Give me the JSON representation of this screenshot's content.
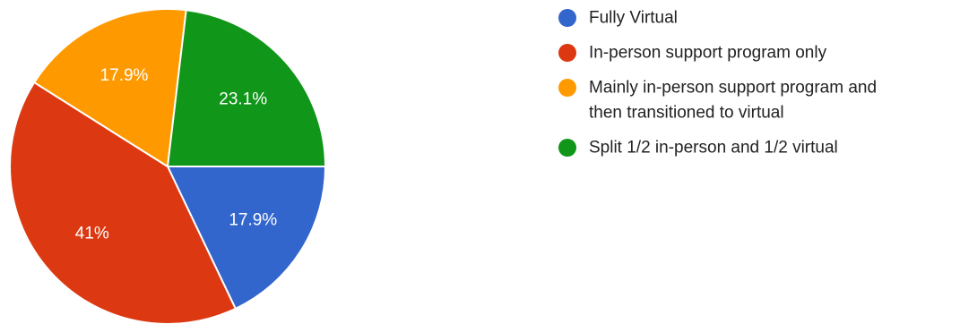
{
  "chart_data": {
    "type": "pie",
    "title": "",
    "legend_position": "right",
    "slices": [
      {
        "name": "Fully Virtual",
        "value": 17.9,
        "label": "17.9%",
        "color": "#3366cc"
      },
      {
        "name": "In-person support program only",
        "value": 41.0,
        "label": "41%",
        "color": "#dc3912"
      },
      {
        "name": "Mainly in-person support program and then transitioned to virtual",
        "value": 17.9,
        "label": "17.9%",
        "color": "#ff9900"
      },
      {
        "name": "Split 1/2 in-person and 1/2 virtual",
        "value": 23.1,
        "label": "23.1%",
        "color": "#109618"
      }
    ],
    "legend": [
      {
        "lines": [
          "Fully Virtual"
        ],
        "color": "#3366cc"
      },
      {
        "lines": [
          "In-person support program only"
        ],
        "color": "#dc3912"
      },
      {
        "lines": [
          "Mainly in-person support program and",
          "then transitioned to virtual"
        ],
        "color": "#ff9900"
      },
      {
        "lines": [
          "Split 1/2 in-person and 1/2 virtual"
        ],
        "color": "#109618"
      }
    ]
  }
}
